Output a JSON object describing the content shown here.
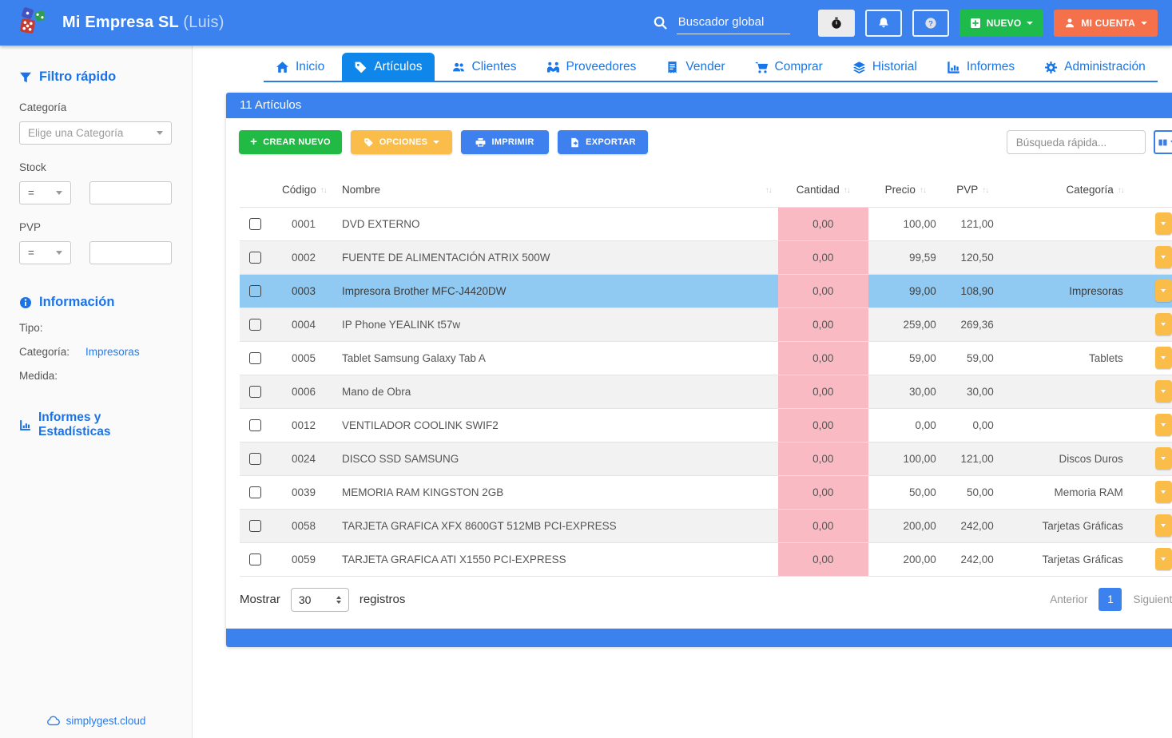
{
  "header": {
    "company": "Mi Empresa SL",
    "user": "(Luis)",
    "search_placeholder": "Buscador global",
    "new_button": "NUEVO",
    "account_button": "MI CUENTA"
  },
  "colors": {
    "topbar_blue": "#3b82ee",
    "active_tab_blue": "#0f86ea",
    "green": "#21ba45",
    "amber": "#fbbd4a",
    "button_blue": "#3e80ed",
    "account_orange": "#f4714c",
    "selected_row_blue": "#90caf3",
    "quantity_pink": "#f9bac4"
  },
  "nav": {
    "tabs": [
      {
        "name": "tab-inicio",
        "label": "Inicio",
        "icon": "home"
      },
      {
        "name": "tab-articulos",
        "label": "Artículos",
        "icon": "tag",
        "active": true
      },
      {
        "name": "tab-clientes",
        "label": "Clientes",
        "icon": "users"
      },
      {
        "name": "tab-proveedores",
        "label": "Proveedores",
        "icon": "handshake"
      },
      {
        "name": "tab-vender",
        "label": "Vender",
        "icon": "receipt"
      },
      {
        "name": "tab-comprar",
        "label": "Comprar",
        "icon": "cart"
      },
      {
        "name": "tab-historial",
        "label": "Historial",
        "icon": "layers"
      },
      {
        "name": "tab-informes",
        "label": "Informes",
        "icon": "chart"
      },
      {
        "name": "tab-administracion",
        "label": "Administración",
        "icon": "gears"
      }
    ]
  },
  "sidebar": {
    "filter_title": "Filtro rápido",
    "category_label": "Categoría",
    "category_placeholder": "Elige una Categoría",
    "stock_label": "Stock",
    "stock_operator": "=",
    "pvp_label": "PVP",
    "pvp_operator": "=",
    "info_title": "Información",
    "info_rows": [
      {
        "name": "info-tipo",
        "label": "Tipo:",
        "value": ""
      },
      {
        "name": "info-categoria",
        "label": "Categoría:",
        "value": "Impresoras",
        "link": true
      },
      {
        "name": "info-medida",
        "label": "Medida:",
        "value": ""
      }
    ],
    "reports_link": "Informes y Estadísticas",
    "footer_link": "simplygest.cloud"
  },
  "panel": {
    "title": "11 Artículos",
    "toolbar": {
      "create": "CREAR NUEVO",
      "options": "OPCIONES",
      "print": "IMPRIMIR",
      "export": "EXPORTAR",
      "search_placeholder": "Búsqueda rápida..."
    },
    "table": {
      "headers": {
        "codigo": "Código",
        "nombre": "Nombre",
        "cantidad": "Cantidad",
        "precio": "Precio",
        "pvp": "PVP",
        "categoria": "Categoría"
      },
      "rows": [
        {
          "codigo": "0001",
          "nombre": "DVD EXTERNO",
          "cantidad": "0,00",
          "precio": "100,00",
          "pvp": "121,00",
          "categoria": ""
        },
        {
          "codigo": "0002",
          "nombre": "FUENTE DE ALIMENTACIÓN ATRIX 500W",
          "cantidad": "0,00",
          "precio": "99,59",
          "pvp": "120,50",
          "categoria": ""
        },
        {
          "codigo": "0003",
          "nombre": "Impresora Brother MFC-J4420DW",
          "cantidad": "0,00",
          "precio": "99,00",
          "pvp": "108,90",
          "categoria": "Impresoras",
          "selected": true
        },
        {
          "codigo": "0004",
          "nombre": "IP Phone YEALINK t57w",
          "cantidad": "0,00",
          "precio": "259,00",
          "pvp": "269,36",
          "categoria": ""
        },
        {
          "codigo": "0005",
          "nombre": "Tablet Samsung Galaxy Tab A",
          "cantidad": "0,00",
          "precio": "59,00",
          "pvp": "59,00",
          "categoria": "Tablets"
        },
        {
          "codigo": "0006",
          "nombre": "Mano de Obra",
          "cantidad": "0,00",
          "precio": "30,00",
          "pvp": "30,00",
          "categoria": ""
        },
        {
          "codigo": "0012",
          "nombre": "VENTILADOR COOLINK SWIF2",
          "cantidad": "0,00",
          "precio": "0,00",
          "pvp": "0,00",
          "categoria": ""
        },
        {
          "codigo": "0024",
          "nombre": "DISCO SSD SAMSUNG",
          "cantidad": "0,00",
          "precio": "100,00",
          "pvp": "121,00",
          "categoria": "Discos Duros"
        },
        {
          "codigo": "0039",
          "nombre": "MEMORIA RAM KINGSTON 2GB",
          "cantidad": "0,00",
          "precio": "50,00",
          "pvp": "50,00",
          "categoria": "Memoria RAM"
        },
        {
          "codigo": "0058",
          "nombre": "TARJETA GRAFICA XFX 8600GT 512MB PCI-EXPRESS",
          "cantidad": "0,00",
          "precio": "200,00",
          "pvp": "242,00",
          "categoria": "Tarjetas Gráficas"
        },
        {
          "codigo": "0059",
          "nombre": "TARJETA GRAFICA ATI X1550 PCI-EXPRESS",
          "cantidad": "0,00",
          "precio": "200,00",
          "pvp": "242,00",
          "categoria": "Tarjetas Gráficas"
        }
      ]
    },
    "footer": {
      "show_label": "Mostrar",
      "page_size": "30",
      "records_label": "registros",
      "prev": "Anterior",
      "page": "1",
      "next": "Siguiente"
    }
  }
}
